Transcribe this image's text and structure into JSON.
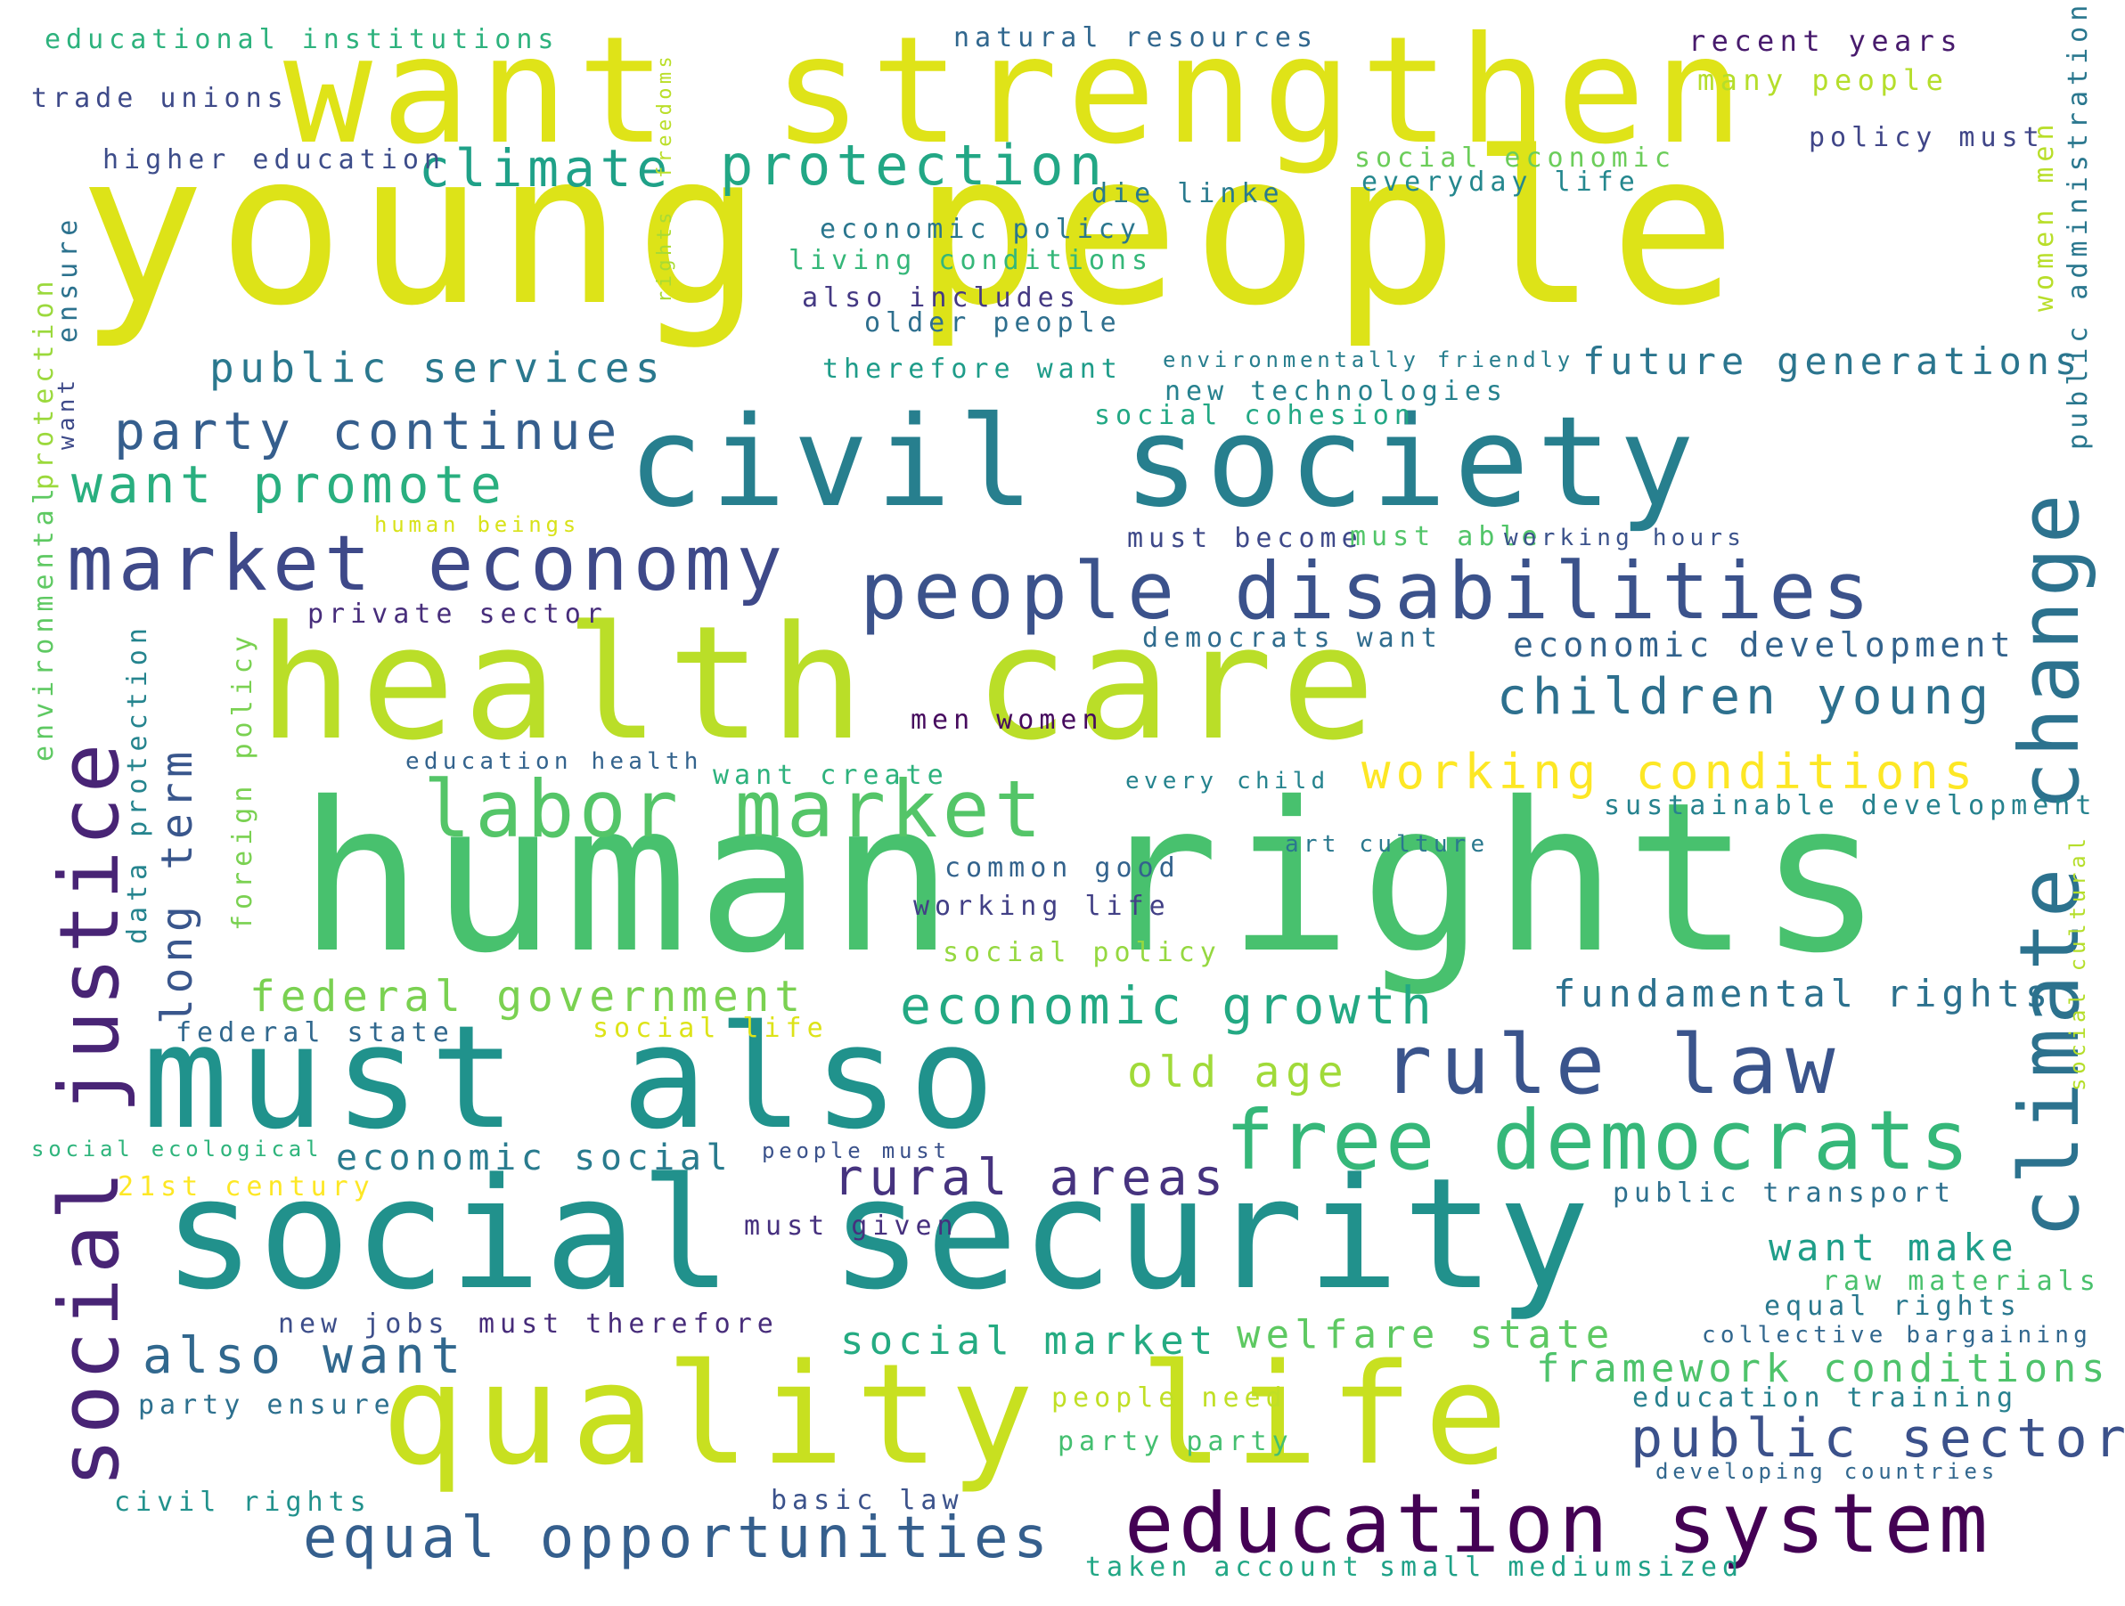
{
  "words": [
    {
      "text": "young people",
      "color": "#dde318"
    },
    {
      "text": "want strengthen",
      "color": "#dfe318"
    },
    {
      "text": "human rights",
      "color": "#48c16e"
    },
    {
      "text": "health care",
      "color": "#bade28"
    },
    {
      "text": "civil society",
      "color": "#277f8e"
    },
    {
      "text": "social security",
      "color": "#21918c"
    },
    {
      "text": "must also",
      "color": "#20928c"
    },
    {
      "text": "quality life",
      "color": "#c8e020"
    },
    {
      "text": "people disabilities",
      "color": "#3b528b"
    },
    {
      "text": "market economy",
      "color": "#3e4989"
    },
    {
      "text": "education system",
      "color": "#440154"
    },
    {
      "text": "rule law",
      "color": "#3a548c"
    },
    {
      "text": "free democrats",
      "color": "#35b779"
    },
    {
      "text": "labor market",
      "color": "#54c568"
    },
    {
      "text": "social justice",
      "color": "#482475"
    },
    {
      "text": "climate change",
      "color": "#2c728e"
    },
    {
      "text": "equal opportunities",
      "color": "#355f8d"
    },
    {
      "text": "protection",
      "color": "#22a785"
    },
    {
      "text": "climate",
      "color": "#1fa188"
    },
    {
      "text": "public sector",
      "color": "#3b518b"
    },
    {
      "text": "party continue",
      "color": "#355e8d"
    },
    {
      "text": "want promote",
      "color": "#29af7f"
    },
    {
      "text": "economic growth",
      "color": "#23a983"
    },
    {
      "text": "children young",
      "color": "#2d708e"
    },
    {
      "text": "public services",
      "color": "#2a788e"
    },
    {
      "text": "future generations",
      "color": "#2b758e"
    },
    {
      "text": "also want",
      "color": "#31688e"
    },
    {
      "text": "federal government",
      "color": "#7ad151"
    },
    {
      "text": "working conditions",
      "color": "#fde725"
    },
    {
      "text": "rural areas",
      "color": "#46337f"
    },
    {
      "text": "long term",
      "color": "#39568c"
    },
    {
      "text": "framework conditions",
      "color": "#4ec36b"
    },
    {
      "text": "welfare state",
      "color": "#5ec962"
    },
    {
      "text": "social market",
      "color": "#25ab82"
    },
    {
      "text": "want make",
      "color": "#1f9e89"
    },
    {
      "text": "economic development",
      "color": "#33638d"
    },
    {
      "text": "fundamental rights",
      "color": "#2c718e"
    },
    {
      "text": "old age",
      "color": "#a0da39"
    },
    {
      "text": "economic social",
      "color": "#297b8e"
    },
    {
      "text": "educational institutions",
      "color": "#2db27d"
    },
    {
      "text": "trade unions",
      "color": "#3e4a89"
    },
    {
      "text": "higher education",
      "color": "#3d4d8a"
    },
    {
      "text": "natural resources",
      "color": "#31678e"
    },
    {
      "text": "recent years",
      "color": "#481b6d"
    },
    {
      "text": "many people",
      "color": "#b5de2b"
    },
    {
      "text": "policy must",
      "color": "#404688"
    },
    {
      "text": "social economic",
      "color": "#6ccd5a"
    },
    {
      "text": "everyday life",
      "color": "#24878e"
    },
    {
      "text": "die linke",
      "color": "#297a8e"
    },
    {
      "text": "economic policy",
      "color": "#2a768e"
    },
    {
      "text": "living conditions",
      "color": "#35b779"
    },
    {
      "text": "also includes",
      "color": "#443983"
    },
    {
      "text": "older people",
      "color": "#2e6f8e"
    },
    {
      "text": "therefore want",
      "color": "#1e9c89"
    },
    {
      "text": "environmentally friendly",
      "color": "#277e8e"
    },
    {
      "text": "new technologies",
      "color": "#26818e"
    },
    {
      "text": "social cohesion",
      "color": "#22a884"
    },
    {
      "text": "must become",
      "color": "#3e4989"
    },
    {
      "text": "must able",
      "color": "#52c569"
    },
    {
      "text": "working hours",
      "color": "#3b528b"
    },
    {
      "text": "human beings",
      "color": "#d8e219"
    },
    {
      "text": "private sector",
      "color": "#472d7b"
    },
    {
      "text": "democrats want",
      "color": "#2f6c8e"
    },
    {
      "text": "men women",
      "color": "#460b5e"
    },
    {
      "text": "education health",
      "color": "#33638d"
    },
    {
      "text": "want create",
      "color": "#2db27d"
    },
    {
      "text": "every child",
      "color": "#25838e"
    },
    {
      "text": "sustainable development",
      "color": "#26828e"
    },
    {
      "text": "art culture",
      "color": "#2a788e"
    },
    {
      "text": "common good",
      "color": "#33638d"
    },
    {
      "text": "working life",
      "color": "#424086"
    },
    {
      "text": "social policy",
      "color": "#95d840"
    },
    {
      "text": "federal state",
      "color": "#31688e"
    },
    {
      "text": "social life",
      "color": "#dde318"
    },
    {
      "text": "social ecological",
      "color": "#2fb47c"
    },
    {
      "text": "people must",
      "color": "#3b528b"
    },
    {
      "text": "21st century",
      "color": "#fde725"
    },
    {
      "text": "must given",
      "color": "#46307e"
    },
    {
      "text": "public transport",
      "color": "#2d708e"
    },
    {
      "text": "new jobs",
      "color": "#3d4e8a"
    },
    {
      "text": "must therefore",
      "color": "#472c7a"
    },
    {
      "text": "raw materials",
      "color": "#4ac16d"
    },
    {
      "text": "equal rights",
      "color": "#29788e"
    },
    {
      "text": "collective bargaining",
      "color": "#31678e"
    },
    {
      "text": "party ensure",
      "color": "#2d708e"
    },
    {
      "text": "people need",
      "color": "#c0df25"
    },
    {
      "text": "education training",
      "color": "#27808e"
    },
    {
      "text": "party party",
      "color": "#44bf70"
    },
    {
      "text": "developing countries",
      "color": "#31678e"
    },
    {
      "text": "civil rights",
      "color": "#21918c"
    },
    {
      "text": "basic law",
      "color": "#3b528b"
    },
    {
      "text": "taken account",
      "color": "#22a785"
    },
    {
      "text": "small mediumsized",
      "color": "#1fa188"
    },
    {
      "text": "freedoms",
      "color": "#bade28"
    },
    {
      "text": "rights",
      "color": "#a8db34"
    },
    {
      "text": "ensure",
      "color": "#2c728e"
    },
    {
      "text": "want",
      "color": "#3e4a89"
    },
    {
      "text": "protection",
      "color": "#9bd93c"
    },
    {
      "text": "environmental",
      "color": "#5ec962"
    },
    {
      "text": "data protection",
      "color": "#25848e"
    },
    {
      "text": "foreign policy",
      "color": "#7ad151"
    },
    {
      "text": "women men",
      "color": "#b8de29"
    },
    {
      "text": "public administration",
      "color": "#2a778e"
    },
    {
      "text": "social cultural",
      "color": "#b5de2b"
    }
  ]
}
